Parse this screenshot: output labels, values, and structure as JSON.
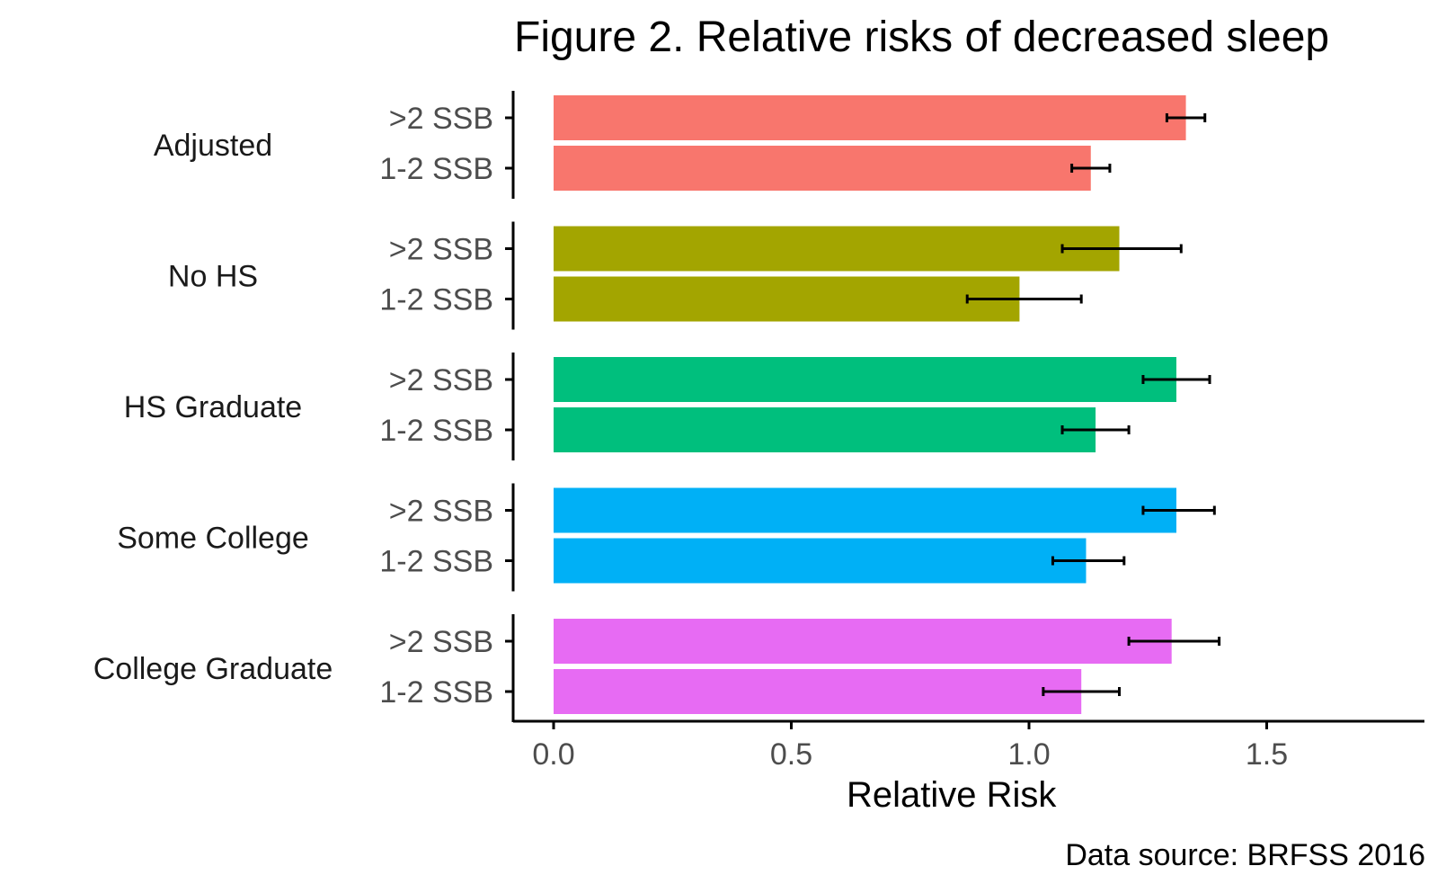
{
  "chart_data": {
    "type": "bar",
    "orientation": "horizontal",
    "title": "Figure 2. Relative risks of decreased sleep",
    "xlabel": "Relative Risk",
    "caption": "Data source: BRFSS 2016",
    "xlim": [
      0,
      1.8
    ],
    "x_ticks": [
      {
        "value": 0.0,
        "label": "0.0"
      },
      {
        "value": 0.5,
        "label": "0.5"
      },
      {
        "value": 1.0,
        "label": "1.0"
      },
      {
        "value": 1.5,
        "label": "1.5"
      }
    ],
    "grid": false,
    "legend": "none",
    "groups": [
      {
        "label": "Adjusted",
        "color": "#F8766D",
        "bars": [
          {
            "label": ">2 SSB",
            "value": 1.33,
            "ci_low": 1.29,
            "ci_high": 1.37
          },
          {
            "label": "1-2 SSB",
            "value": 1.13,
            "ci_low": 1.09,
            "ci_high": 1.17
          }
        ]
      },
      {
        "label": "No HS",
        "color": "#A3A500",
        "bars": [
          {
            "label": ">2 SSB",
            "value": 1.19,
            "ci_low": 1.07,
            "ci_high": 1.32
          },
          {
            "label": "1-2 SSB",
            "value": 0.98,
            "ci_low": 0.87,
            "ci_high": 1.11
          }
        ]
      },
      {
        "label": "HS Graduate",
        "color": "#00BF7D",
        "bars": [
          {
            "label": ">2 SSB",
            "value": 1.31,
            "ci_low": 1.24,
            "ci_high": 1.38
          },
          {
            "label": "1-2 SSB",
            "value": 1.14,
            "ci_low": 1.07,
            "ci_high": 1.21
          }
        ]
      },
      {
        "label": "Some College",
        "color": "#00B0F6",
        "bars": [
          {
            "label": ">2 SSB",
            "value": 1.31,
            "ci_low": 1.24,
            "ci_high": 1.39
          },
          {
            "label": "1-2 SSB",
            "value": 1.12,
            "ci_low": 1.05,
            "ci_high": 1.2
          }
        ]
      },
      {
        "label": "College Graduate",
        "color": "#E76BF3",
        "bars": [
          {
            "label": ">2 SSB",
            "value": 1.3,
            "ci_low": 1.21,
            "ci_high": 1.4
          },
          {
            "label": "1-2 SSB",
            "value": 1.11,
            "ci_low": 1.03,
            "ci_high": 1.19
          }
        ]
      }
    ]
  }
}
